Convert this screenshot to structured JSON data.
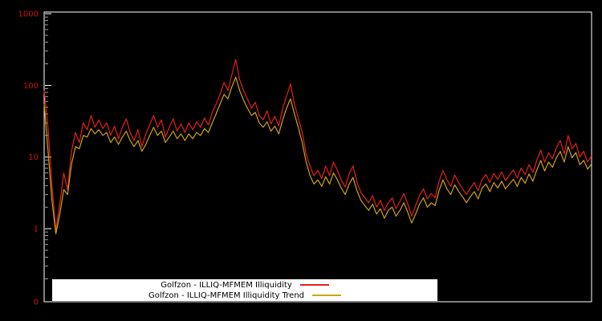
{
  "chart_data": {
    "type": "line",
    "title": "",
    "xlabel": "",
    "ylabel": "",
    "y_scale": "log",
    "background_color": "#000000",
    "plot_border_color": "#ffffff",
    "tick_label_color": "#cc1414",
    "x_ticks": [],
    "y_ticks": [
      {
        "label": "1000",
        "value": 1000
      },
      {
        "label": "100",
        "value": 100
      },
      {
        "label": "10",
        "value": 10
      },
      {
        "label": "1",
        "value": 1
      },
      {
        "label": "0",
        "value": 0
      }
    ],
    "ylim_log": [
      0.1,
      1000
    ],
    "grid": false,
    "legend_position": "bottom-center",
    "legend_background": "#ffffff",
    "series": [
      {
        "name": "Golfzon - ILLIQ-MFMEM Illiquidity",
        "color": "#e6201e",
        "values": [
          85,
          25,
          4,
          0.95,
          2.2,
          6,
          3.5,
          12,
          22,
          16,
          30,
          24,
          38,
          26,
          33,
          25,
          30,
          20,
          27,
          18,
          26,
          34,
          22,
          17,
          24,
          14,
          21,
          28,
          38,
          26,
          33,
          19,
          26,
          34,
          23,
          29,
          22,
          30,
          24,
          31,
          26,
          35,
          28,
          42,
          55,
          75,
          110,
          85,
          140,
          230,
          120,
          85,
          65,
          48,
          58,
          38,
          33,
          44,
          29,
          37,
          27,
          48,
          70,
          105,
          55,
          35,
          22,
          11,
          7.5,
          5.5,
          6.5,
          5,
          7.5,
          5.5,
          8.5,
          6.5,
          4.8,
          3.8,
          5.8,
          7.5,
          4.5,
          3.2,
          2.7,
          2.3,
          2.9,
          2.0,
          2.5,
          1.8,
          2.3,
          2.7,
          1.9,
          2.4,
          3.1,
          2.2,
          1.5,
          2.1,
          2.9,
          3.6,
          2.6,
          3.1,
          2.7,
          4.6,
          6.5,
          4.8,
          3.9,
          5.6,
          4.4,
          3.6,
          3.0,
          3.7,
          4.4,
          3.4,
          4.9,
          5.7,
          4.4,
          5.9,
          4.9,
          6.2,
          4.7,
          5.6,
          6.6,
          5.1,
          7.0,
          5.7,
          7.8,
          6.1,
          9.0,
          12.5,
          8.5,
          11.5,
          9.5,
          13.5,
          17,
          11,
          20,
          13,
          15.5,
          10,
          12,
          8.5,
          10.5
        ]
      },
      {
        "name": "Golfzon - ILLIQ-MFMEM Illiquidity Trend",
        "color": "#cfa318",
        "values": [
          55,
          12,
          2.5,
          0.85,
          1.6,
          3.5,
          3.0,
          8,
          14,
          13,
          20,
          19,
          25,
          21,
          24,
          20,
          22,
          16,
          19,
          15,
          19,
          23,
          17,
          14,
          17,
          12,
          15,
          20,
          26,
          20,
          23,
          16,
          19,
          23,
          18,
          21,
          17,
          21,
          18,
          22,
          20,
          25,
          22,
          30,
          40,
          55,
          75,
          65,
          95,
          130,
          85,
          62,
          48,
          38,
          42,
          30,
          26,
          31,
          23,
          27,
          21,
          33,
          48,
          65,
          40,
          26,
          16,
          8.5,
          5.5,
          4.2,
          4.8,
          3.9,
          5.3,
          4.2,
          6.0,
          4.8,
          3.7,
          3.0,
          4.2,
          5.2,
          3.4,
          2.5,
          2.1,
          1.8,
          2.2,
          1.6,
          1.9,
          1.4,
          1.8,
          2.0,
          1.5,
          1.8,
          2.3,
          1.7,
          1.2,
          1.6,
          2.2,
          2.7,
          2.0,
          2.3,
          2.1,
          3.4,
          4.8,
          3.6,
          3.0,
          4.1,
          3.3,
          2.8,
          2.3,
          2.8,
          3.3,
          2.6,
          3.7,
          4.2,
          3.3,
          4.4,
          3.7,
          4.6,
          3.6,
          4.2,
          4.9,
          3.9,
          5.2,
          4.3,
          5.8,
          4.6,
          6.6,
          9.0,
          6.4,
          8.5,
          7.2,
          9.8,
          12,
          8.5,
          14,
          9.8,
          11.5,
          7.8,
          9.0,
          6.8,
          8.0
        ]
      }
    ]
  }
}
